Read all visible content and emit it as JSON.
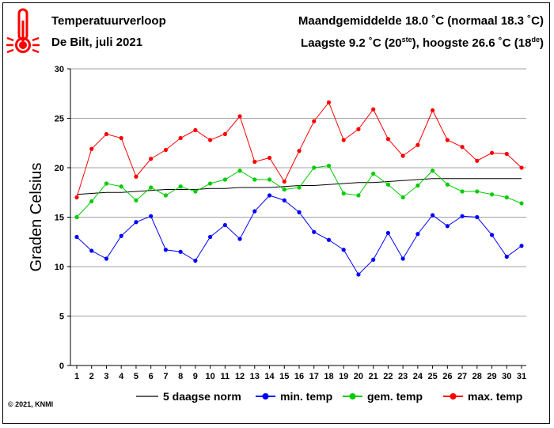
{
  "header": {
    "title": "Temperatuurverloop",
    "subtitle": "De Bilt, juli 2021",
    "stat_line1": "Maandgemiddelde 18.0 ˚C (normaal 18.3 ˚C)",
    "stat_line2_a": "Laagste 9.2 ˚C (20",
    "stat_line2_sup1": "ste",
    "stat_line2_b": "), hoogste 26.6 ˚C (18",
    "stat_line2_sup2": "de",
    "stat_line2_c": ")"
  },
  "copyright": "© 2021, KNMI",
  "colors": {
    "norm": "#000000",
    "min": "#0000ff",
    "avg": "#00cc00",
    "max": "#ff0000",
    "grid": "#808080",
    "thermometer": "#ff0000"
  },
  "icon": "thermometer-icon",
  "chart_data": {
    "type": "line",
    "ylabel": "Graden Celsius",
    "ylim": [
      0,
      30
    ],
    "yticks": [
      0,
      5,
      10,
      15,
      20,
      25,
      30
    ],
    "x": [
      1,
      2,
      3,
      4,
      5,
      6,
      7,
      8,
      9,
      10,
      11,
      12,
      13,
      14,
      15,
      16,
      17,
      18,
      19,
      20,
      21,
      22,
      23,
      24,
      25,
      26,
      27,
      28,
      29,
      30,
      31
    ],
    "grid": true,
    "legend_position": "bottom",
    "series": [
      {
        "name": "5 daagse norm",
        "key": "norm",
        "markers": false,
        "values": [
          17.3,
          17.4,
          17.5,
          17.5,
          17.6,
          17.7,
          17.8,
          17.8,
          17.8,
          17.9,
          17.9,
          18.0,
          18.0,
          18.0,
          18.1,
          18.2,
          18.2,
          18.3,
          18.4,
          18.5,
          18.5,
          18.6,
          18.7,
          18.8,
          18.9,
          18.9,
          18.9,
          18.9,
          18.9,
          18.9,
          18.9
        ]
      },
      {
        "name": "min. temp",
        "key": "min",
        "markers": true,
        "values": [
          13.0,
          11.6,
          10.8,
          13.1,
          14.5,
          15.1,
          11.7,
          11.5,
          10.6,
          13.0,
          14.2,
          12.8,
          15.6,
          17.2,
          16.7,
          15.5,
          13.5,
          12.7,
          11.7,
          9.2,
          10.7,
          13.4,
          10.8,
          13.3,
          15.2,
          14.1,
          15.1,
          15.0,
          13.2,
          11.0,
          12.1
        ]
      },
      {
        "name": "gem. temp",
        "key": "avg",
        "markers": true,
        "values": [
          15.0,
          16.6,
          18.4,
          18.1,
          16.7,
          18.0,
          17.2,
          18.1,
          17.6,
          18.4,
          18.8,
          19.7,
          18.8,
          18.8,
          17.8,
          18.0,
          20.0,
          20.2,
          17.4,
          17.2,
          19.4,
          18.3,
          17.0,
          18.2,
          19.7,
          18.3,
          17.6,
          17.6,
          17.3,
          17.0,
          16.4
        ]
      },
      {
        "name": "max. temp",
        "key": "max",
        "markers": true,
        "values": [
          17.0,
          21.9,
          23.4,
          23.0,
          19.1,
          20.9,
          21.8,
          23.0,
          23.8,
          22.8,
          23.4,
          25.2,
          20.6,
          21.0,
          18.6,
          21.7,
          24.7,
          26.6,
          22.8,
          23.9,
          25.9,
          22.9,
          21.2,
          22.3,
          25.8,
          22.8,
          22.1,
          20.7,
          21.5,
          21.4,
          20.0
        ]
      }
    ]
  }
}
